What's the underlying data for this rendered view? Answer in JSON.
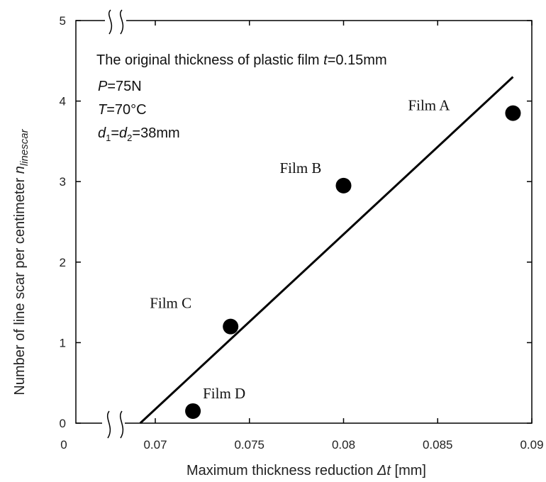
{
  "chart_data": {
    "type": "scatter",
    "x": [
      0.089,
      0.08,
      0.074,
      0.072
    ],
    "y": [
      3.85,
      2.95,
      1.2,
      0.15
    ],
    "point_labels": [
      "Film A",
      "Film B",
      "Film C",
      "Film D"
    ],
    "fit_line": {
      "x": [
        0.0692,
        0.089
      ],
      "y": [
        0.0,
        4.3
      ]
    },
    "xlim": [
      0.065,
      0.09
    ],
    "ylim": [
      0,
      5
    ],
    "x_ticks": [
      0.07,
      0.075,
      0.08,
      0.085,
      0.09
    ],
    "x_tick_labels": [
      "0.07",
      "0.075",
      "0.08",
      "0.085",
      "0.09"
    ],
    "x_origin_label": "0",
    "y_ticks": [
      0,
      1,
      2,
      3,
      4,
      5
    ],
    "y_tick_labels": [
      "0",
      "1",
      "2",
      "3",
      "4",
      "5"
    ],
    "axis_break": true,
    "xlabel": {
      "main": "Maximum thickness reduction ",
      "symbol": "Δt",
      "unit": " [mm]"
    },
    "ylabel": {
      "main": "Number of line scar per centimeter ",
      "symbol": "n",
      "subscript": "linescar"
    },
    "annotations": {
      "line1": {
        "text": "The original thickness of plastic film ",
        "sym": "t",
        "val": "=0.15mm"
      },
      "line2": {
        "sym": "P",
        "val": "=75N"
      },
      "line3": {
        "sym": "T",
        "val": "=70°C"
      },
      "line4": {
        "sym1": "d",
        "sub1": "1",
        "eq": "=",
        "sym2": "d",
        "sub2": "2",
        "val": "=38mm"
      }
    },
    "grid": false,
    "marker_color": "#000000",
    "line_color": "#000000"
  }
}
